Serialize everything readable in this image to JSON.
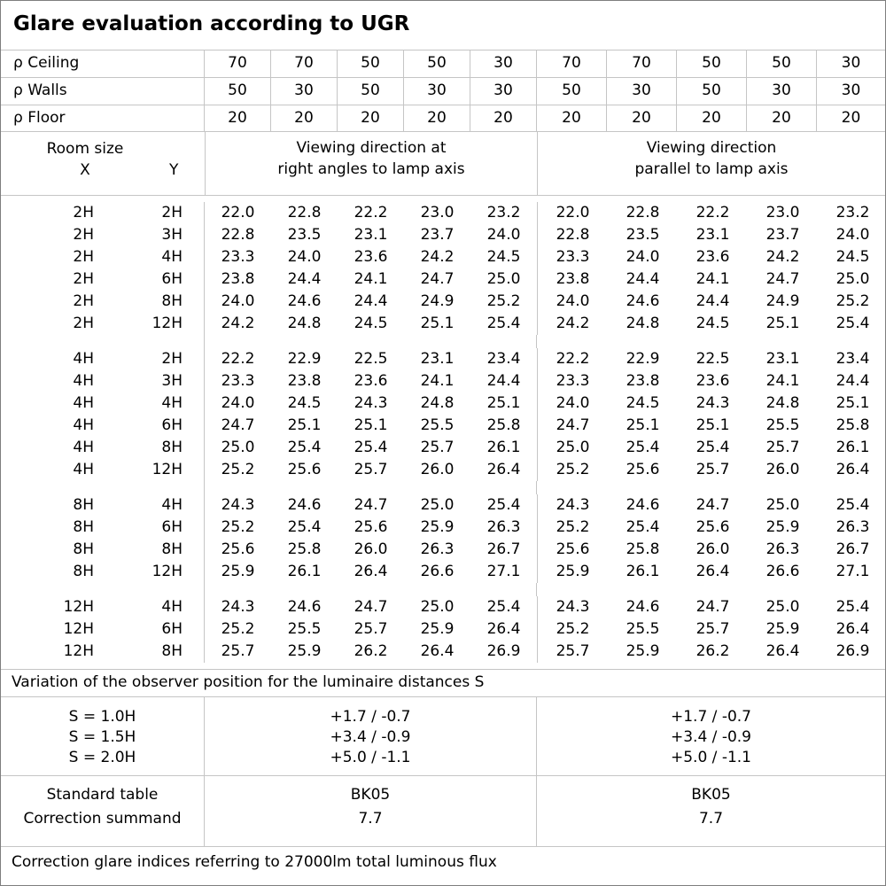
{
  "title": "Glare evaluation according to UGR",
  "reflectances": {
    "rows": [
      {
        "label": "ρ Ceiling",
        "values": [
          "70",
          "70",
          "50",
          "50",
          "30",
          "70",
          "70",
          "50",
          "50",
          "30"
        ]
      },
      {
        "label": "ρ Walls",
        "values": [
          "50",
          "30",
          "50",
          "30",
          "30",
          "50",
          "30",
          "50",
          "30",
          "30"
        ]
      },
      {
        "label": "ρ Floor",
        "values": [
          "20",
          "20",
          "20",
          "20",
          "20",
          "20",
          "20",
          "20",
          "20",
          "20"
        ]
      }
    ]
  },
  "header": {
    "room_size_label": "Room size",
    "x_label": "X",
    "y_label": "Y",
    "group1_label": "Viewing direction at\nright angles to lamp axis",
    "group2_label": "Viewing direction\nparallel to lamp axis"
  },
  "ugr_table": {
    "blocks": [
      {
        "rows": [
          {
            "x": "2H",
            "y": "2H",
            "right_angles": [
              "22.0",
              "22.8",
              "22.2",
              "23.0",
              "23.2"
            ],
            "parallel": [
              "22.0",
              "22.8",
              "22.2",
              "23.0",
              "23.2"
            ]
          },
          {
            "x": "2H",
            "y": "3H",
            "right_angles": [
              "22.8",
              "23.5",
              "23.1",
              "23.7",
              "24.0"
            ],
            "parallel": [
              "22.8",
              "23.5",
              "23.1",
              "23.7",
              "24.0"
            ]
          },
          {
            "x": "2H",
            "y": "4H",
            "right_angles": [
              "23.3",
              "24.0",
              "23.6",
              "24.2",
              "24.5"
            ],
            "parallel": [
              "23.3",
              "24.0",
              "23.6",
              "24.2",
              "24.5"
            ]
          },
          {
            "x": "2H",
            "y": "6H",
            "right_angles": [
              "23.8",
              "24.4",
              "24.1",
              "24.7",
              "25.0"
            ],
            "parallel": [
              "23.8",
              "24.4",
              "24.1",
              "24.7",
              "25.0"
            ]
          },
          {
            "x": "2H",
            "y": "8H",
            "right_angles": [
              "24.0",
              "24.6",
              "24.4",
              "24.9",
              "25.2"
            ],
            "parallel": [
              "24.0",
              "24.6",
              "24.4",
              "24.9",
              "25.2"
            ]
          },
          {
            "x": "2H",
            "y": "12H",
            "right_angles": [
              "24.2",
              "24.8",
              "24.5",
              "25.1",
              "25.4"
            ],
            "parallel": [
              "24.2",
              "24.8",
              "24.5",
              "25.1",
              "25.4"
            ]
          }
        ]
      },
      {
        "rows": [
          {
            "x": "4H",
            "y": "2H",
            "right_angles": [
              "22.2",
              "22.9",
              "22.5",
              "23.1",
              "23.4"
            ],
            "parallel": [
              "22.2",
              "22.9",
              "22.5",
              "23.1",
              "23.4"
            ]
          },
          {
            "x": "4H",
            "y": "3H",
            "right_angles": [
              "23.3",
              "23.8",
              "23.6",
              "24.1",
              "24.4"
            ],
            "parallel": [
              "23.3",
              "23.8",
              "23.6",
              "24.1",
              "24.4"
            ]
          },
          {
            "x": "4H",
            "y": "4H",
            "right_angles": [
              "24.0",
              "24.5",
              "24.3",
              "24.8",
              "25.1"
            ],
            "parallel": [
              "24.0",
              "24.5",
              "24.3",
              "24.8",
              "25.1"
            ]
          },
          {
            "x": "4H",
            "y": "6H",
            "right_angles": [
              "24.7",
              "25.1",
              "25.1",
              "25.5",
              "25.8"
            ],
            "parallel": [
              "24.7",
              "25.1",
              "25.1",
              "25.5",
              "25.8"
            ]
          },
          {
            "x": "4H",
            "y": "8H",
            "right_angles": [
              "25.0",
              "25.4",
              "25.4",
              "25.7",
              "26.1"
            ],
            "parallel": [
              "25.0",
              "25.4",
              "25.4",
              "25.7",
              "26.1"
            ]
          },
          {
            "x": "4H",
            "y": "12H",
            "right_angles": [
              "25.2",
              "25.6",
              "25.7",
              "26.0",
              "26.4"
            ],
            "parallel": [
              "25.2",
              "25.6",
              "25.7",
              "26.0",
              "26.4"
            ]
          }
        ]
      },
      {
        "rows": [
          {
            "x": "8H",
            "y": "4H",
            "right_angles": [
              "24.3",
              "24.6",
              "24.7",
              "25.0",
              "25.4"
            ],
            "parallel": [
              "24.3",
              "24.6",
              "24.7",
              "25.0",
              "25.4"
            ]
          },
          {
            "x": "8H",
            "y": "6H",
            "right_angles": [
              "25.2",
              "25.4",
              "25.6",
              "25.9",
              "26.3"
            ],
            "parallel": [
              "25.2",
              "25.4",
              "25.6",
              "25.9",
              "26.3"
            ]
          },
          {
            "x": "8H",
            "y": "8H",
            "right_angles": [
              "25.6",
              "25.8",
              "26.0",
              "26.3",
              "26.7"
            ],
            "parallel": [
              "25.6",
              "25.8",
              "26.0",
              "26.3",
              "26.7"
            ]
          },
          {
            "x": "8H",
            "y": "12H",
            "right_angles": [
              "25.9",
              "26.1",
              "26.4",
              "26.6",
              "27.1"
            ],
            "parallel": [
              "25.9",
              "26.1",
              "26.4",
              "26.6",
              "27.1"
            ]
          }
        ]
      },
      {
        "rows": [
          {
            "x": "12H",
            "y": "4H",
            "right_angles": [
              "24.3",
              "24.6",
              "24.7",
              "25.0",
              "25.4"
            ],
            "parallel": [
              "24.3",
              "24.6",
              "24.7",
              "25.0",
              "25.4"
            ]
          },
          {
            "x": "12H",
            "y": "6H",
            "right_angles": [
              "25.2",
              "25.5",
              "25.7",
              "25.9",
              "26.4"
            ],
            "parallel": [
              "25.2",
              "25.5",
              "25.7",
              "25.9",
              "26.4"
            ]
          },
          {
            "x": "12H",
            "y": "8H",
            "right_angles": [
              "25.7",
              "25.9",
              "26.2",
              "26.4",
              "26.9"
            ],
            "parallel": [
              "25.7",
              "25.9",
              "26.2",
              "26.4",
              "26.9"
            ]
          }
        ]
      }
    ]
  },
  "variation_note": "Variation of the observer position for the luminaire distances S",
  "variation": {
    "s_labels": [
      "S = 1.0H",
      "S = 1.5H",
      "S = 2.0H"
    ],
    "right_angles_values": [
      "+1.7 / -0.7",
      "+3.4 / -0.9",
      "+5.0 / -1.1"
    ],
    "parallel_values": [
      "+1.7 / -0.7",
      "+3.4 / -0.9",
      "+5.0 / -1.1"
    ]
  },
  "standard": {
    "labels": [
      "Standard table",
      "Correction summand"
    ],
    "right_angles_values": [
      "BK05",
      "7.7"
    ],
    "parallel_values": [
      "BK05",
      "7.7"
    ]
  },
  "footer_note": "Correction glare indices referring to 27000lm total luminous flux"
}
